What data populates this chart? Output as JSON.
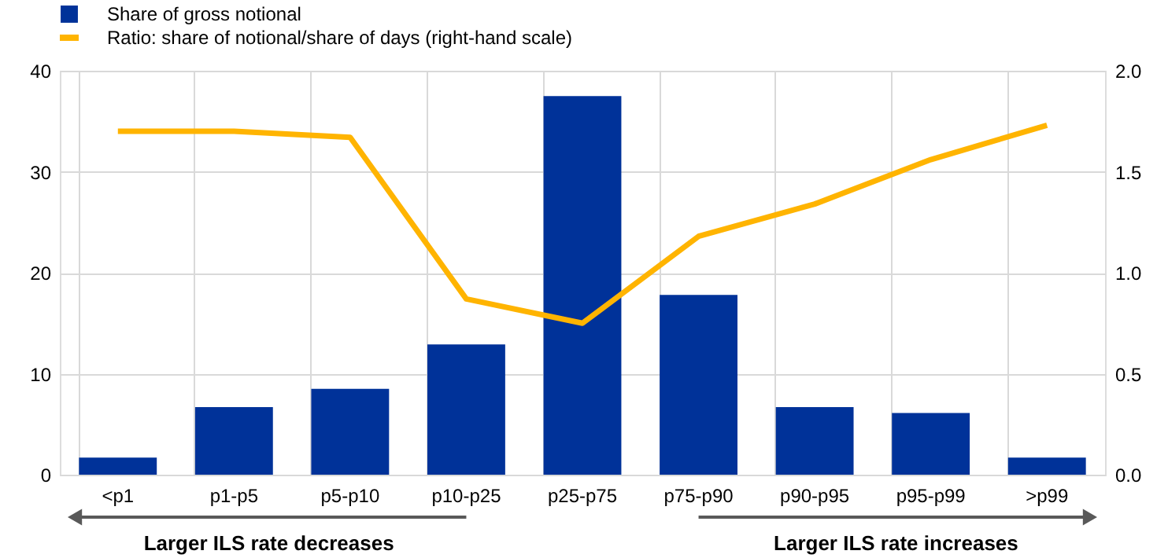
{
  "chart_data": {
    "type": "bar",
    "categories": [
      "<p1",
      "p1-p5",
      "p5-p10",
      "p10-p25",
      "p25-p75",
      "p75-p90",
      "p90-p95",
      "p95-p99",
      ">p99"
    ],
    "series": [
      {
        "name": "Share of gross notional",
        "color": "#003299",
        "values": [
          1.7,
          6.7,
          8.5,
          12.9,
          37.5,
          17.8,
          6.7,
          6.1,
          1.7
        ]
      },
      {
        "name": "Ratio: share of notional/share of days (right-hand scale)",
        "type": "line",
        "axis": "y2",
        "color": "#ffb400",
        "values": [
          1.7,
          1.7,
          1.67,
          0.87,
          0.75,
          1.18,
          1.34,
          1.56,
          1.73
        ]
      }
    ],
    "ylim": [
      0,
      40
    ],
    "yticks": [
      0,
      10,
      20,
      30,
      40
    ],
    "y2lim": [
      0,
      2
    ],
    "y2ticks": [
      {
        "value": 0,
        "label": "0.0"
      },
      {
        "value": 0.5,
        "label": "0.5"
      },
      {
        "value": 1,
        "label": "1.0"
      },
      {
        "value": 1.5,
        "label": "1.5"
      },
      {
        "value": 2,
        "label": "2.0"
      }
    ],
    "grid": true,
    "legend": "top left",
    "marker": "none",
    "line_style": "solid",
    "annotations": [
      "Larger ILS rate decreases",
      "Larger ILS rate increases"
    ]
  }
}
